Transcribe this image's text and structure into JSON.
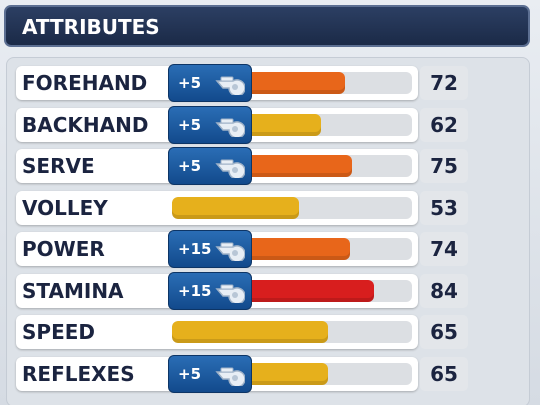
{
  "header": {
    "title": "ATTRIBUTES"
  },
  "attributes": [
    {
      "name": "FOREHAND",
      "boost": "+5",
      "value": 72,
      "color": "#e8661a"
    },
    {
      "name": "BACKHAND",
      "boost": "+5",
      "value": 62,
      "color": "#e6b01c"
    },
    {
      "name": "SERVE",
      "boost": "+5",
      "value": 75,
      "color": "#e8661a"
    },
    {
      "name": "VOLLEY",
      "value": 53,
      "color": "#e6b01c"
    },
    {
      "name": "POWER",
      "boost": "+15",
      "value": 74,
      "color": "#e8661a"
    },
    {
      "name": "STAMINA",
      "boost": "+15",
      "value": 84,
      "color": "#d81e1e"
    },
    {
      "name": "SPEED",
      "value": 65,
      "color": "#e6b01c"
    },
    {
      "name": "REFLEXES",
      "boost": "+5",
      "value": 65,
      "color": "#e6b01c"
    }
  ]
}
